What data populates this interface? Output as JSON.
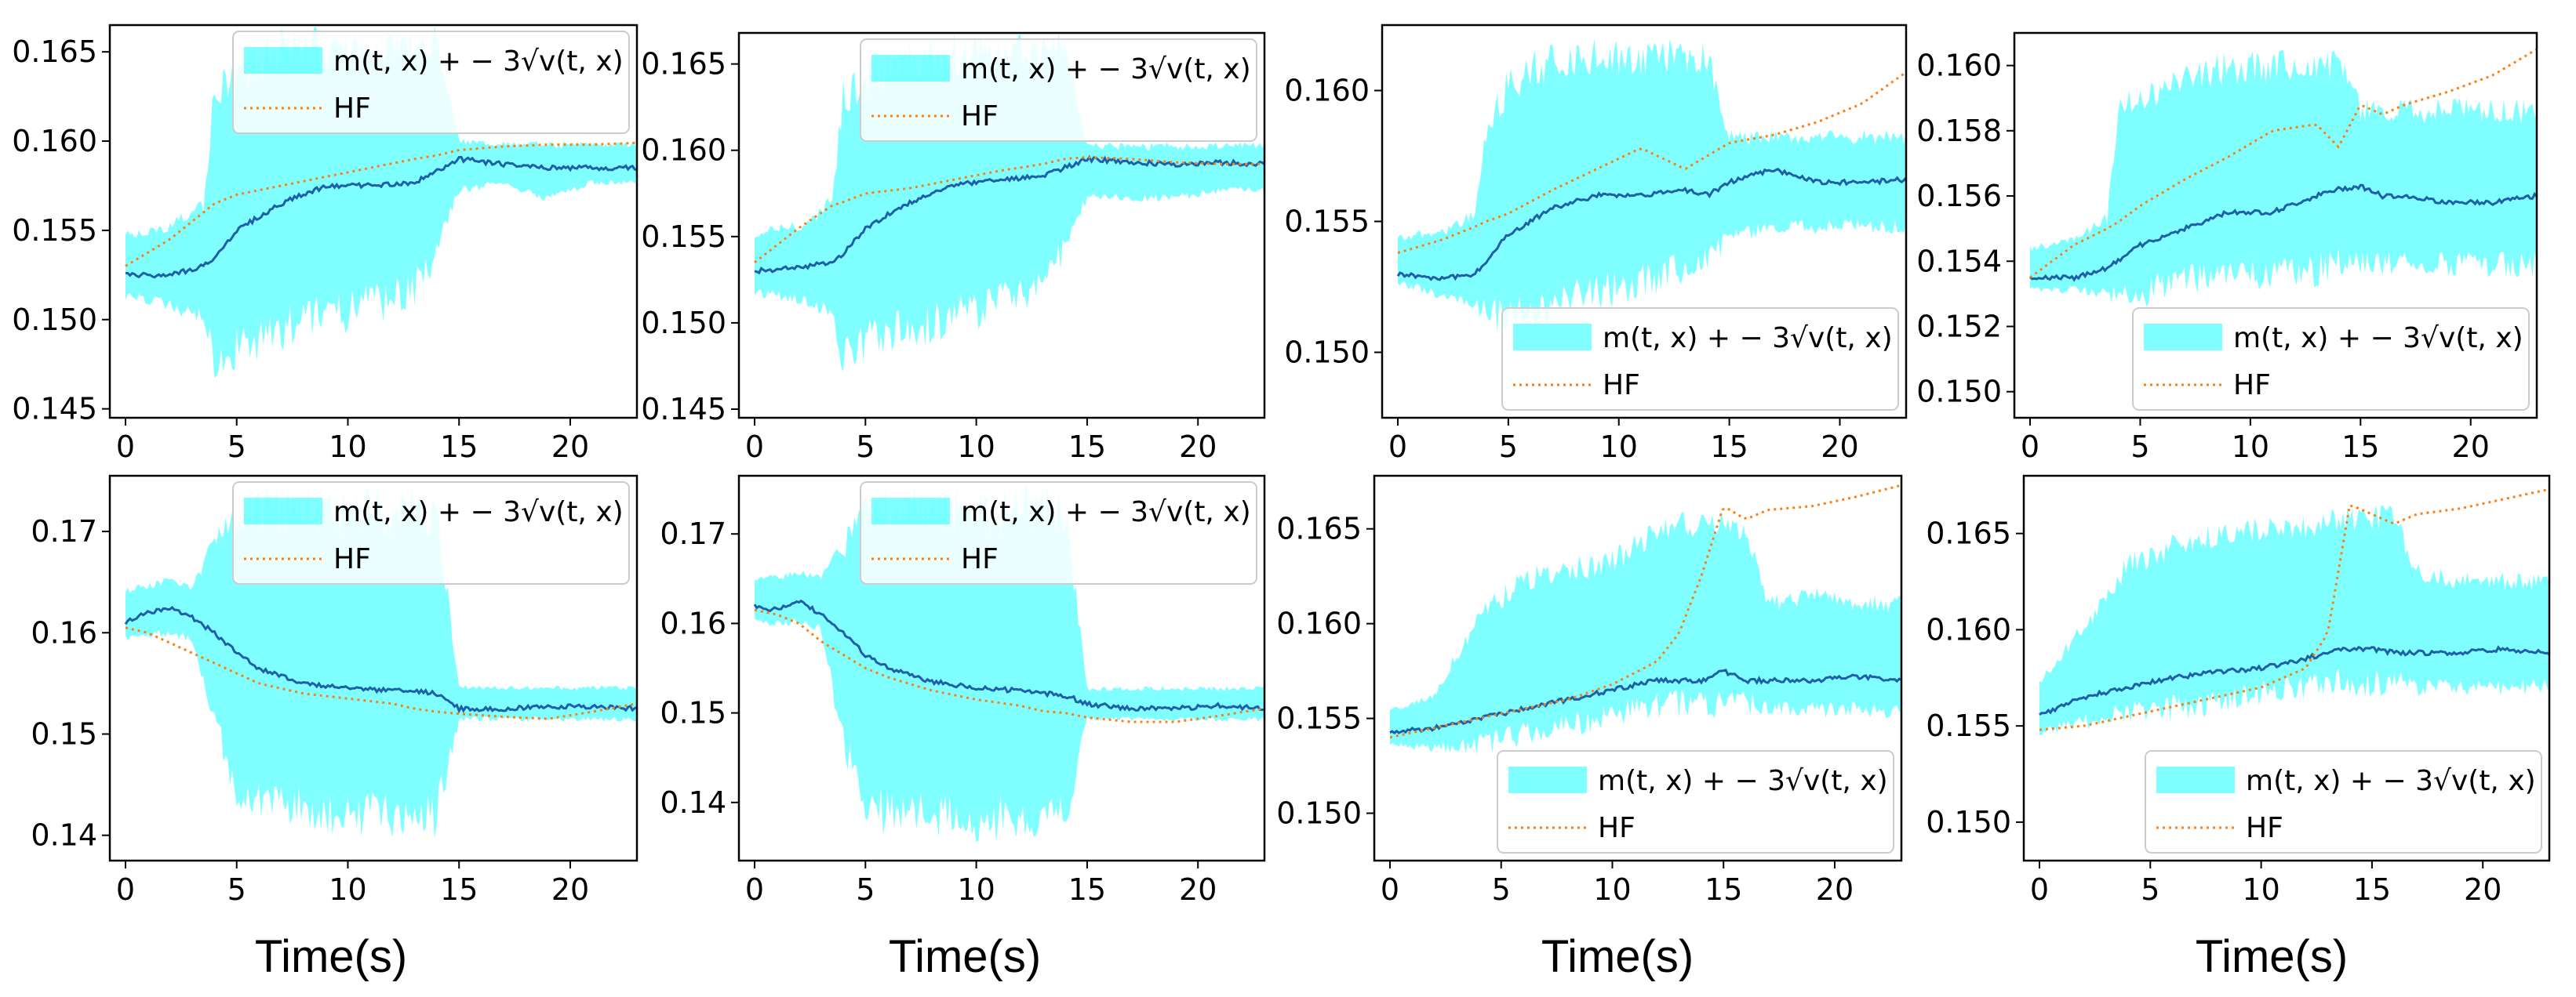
{
  "colors": {
    "band": "#00ffff",
    "mean": "#1f5fa8",
    "hf": "#ff7f0e"
  },
  "legend": {
    "band_label": "m(t, x) + − 3√v(t, x)",
    "hf_label": "HF"
  },
  "xlabels": [
    "Time(s)",
    "Time(s)",
    "Time(s)",
    "Time(s)"
  ],
  "chart_data": [
    {
      "type": "line",
      "legend_loc": "upper-right",
      "xlim": [
        0,
        23
      ],
      "ylim": [
        0.1445,
        0.1665
      ],
      "xticks": [
        0,
        5,
        10,
        15,
        20
      ],
      "yticks": [
        0.145,
        0.15,
        0.155,
        0.16,
        0.165
      ],
      "ytick_labels": [
        "0.145",
        "0.150",
        "0.155",
        "0.160",
        "0.165"
      ],
      "x": [
        0,
        2,
        3.5,
        4,
        5,
        7,
        9,
        11,
        13,
        14,
        15,
        17,
        19,
        21,
        23
      ],
      "mean": [
        0.1525,
        0.1525,
        0.153,
        0.1535,
        0.155,
        0.1565,
        0.1575,
        0.1575,
        0.1577,
        0.1583,
        0.159,
        0.1587,
        0.1585,
        0.1585,
        0.1585
      ],
      "lower": [
        0.151,
        0.1505,
        0.1495,
        0.1465,
        0.147,
        0.148,
        0.149,
        0.1495,
        0.1505,
        0.153,
        0.157,
        0.1575,
        0.1565,
        0.1575,
        0.1575
      ],
      "upper": [
        0.155,
        0.1555,
        0.157,
        0.164,
        0.165,
        0.1665,
        0.1665,
        0.1665,
        0.1665,
        0.1665,
        0.1602,
        0.16,
        0.16,
        0.16,
        0.16
      ],
      "hf": [
        0.153,
        0.1545,
        0.156,
        0.1565,
        0.157,
        0.1575,
        0.158,
        0.1585,
        0.159,
        0.1592,
        0.1595,
        0.1597,
        0.1598,
        0.1598,
        0.1599
      ],
      "legend_band": "m(t, x) + − 3√v(t, x)",
      "legend_hf": "HF"
    },
    {
      "type": "line",
      "legend_loc": "upper-right",
      "xlim": [
        0,
        23
      ],
      "ylim": [
        0.1445,
        0.1668
      ],
      "xticks": [
        0,
        5,
        10,
        15,
        20
      ],
      "yticks": [
        0.145,
        0.15,
        0.155,
        0.16,
        0.165
      ],
      "ytick_labels": [
        "0.145",
        "0.150",
        "0.155",
        "0.160",
        "0.165"
      ],
      "x": [
        0,
        2,
        3.5,
        4,
        5,
        7,
        9,
        11,
        13,
        14,
        15,
        17,
        19,
        21,
        23
      ],
      "mean": [
        0.153,
        0.1532,
        0.1535,
        0.154,
        0.1555,
        0.157,
        0.158,
        0.1583,
        0.1585,
        0.159,
        0.1595,
        0.1593,
        0.1592,
        0.1593,
        0.1592
      ],
      "lower": [
        0.1515,
        0.151,
        0.15,
        0.1465,
        0.1475,
        0.1485,
        0.149,
        0.15,
        0.151,
        0.1535,
        0.157,
        0.157,
        0.157,
        0.1575,
        0.1575
      ],
      "upper": [
        0.1555,
        0.156,
        0.1575,
        0.1645,
        0.1655,
        0.1665,
        0.1668,
        0.1668,
        0.1668,
        0.1668,
        0.1605,
        0.1605,
        0.1605,
        0.1605,
        0.1605
      ],
      "hf": [
        0.1535,
        0.1555,
        0.1568,
        0.157,
        0.1575,
        0.1578,
        0.1583,
        0.1588,
        0.1592,
        0.1595,
        0.1596,
        0.1595,
        0.1593,
        0.1592,
        0.1592
      ],
      "legend_band": "m(t, x) + − 3√v(t, x)",
      "legend_hf": "HF"
    },
    {
      "type": "line",
      "legend_loc": "lower-right",
      "xlim": [
        0,
        23
      ],
      "ylim": [
        0.1475,
        0.1625
      ],
      "xticks": [
        0,
        5,
        10,
        15,
        20
      ],
      "yticks": [
        0.15,
        0.155,
        0.16
      ],
      "ytick_labels": [
        "0.150",
        "0.155",
        "0.160"
      ],
      "x": [
        0,
        2,
        3.5,
        4,
        5,
        7,
        9,
        11,
        13,
        14,
        15,
        17,
        19,
        21,
        23
      ],
      "mean": [
        0.153,
        0.1528,
        0.153,
        0.1535,
        0.1545,
        0.1555,
        0.156,
        0.156,
        0.1562,
        0.156,
        0.1565,
        0.157,
        0.1565,
        0.1565,
        0.1566
      ],
      "lower": [
        0.1525,
        0.152,
        0.1515,
        0.151,
        0.1505,
        0.151,
        0.1515,
        0.152,
        0.1525,
        0.153,
        0.154,
        0.1545,
        0.1545,
        0.1545,
        0.1545
      ],
      "upper": [
        0.1545,
        0.1548,
        0.1555,
        0.159,
        0.161,
        0.162,
        0.162,
        0.162,
        0.162,
        0.162,
        0.1585,
        0.1585,
        0.1585,
        0.1585,
        0.1585
      ],
      "hf": [
        0.1538,
        0.1543,
        0.1548,
        0.155,
        0.1553,
        0.1562,
        0.157,
        0.1578,
        0.157,
        0.1575,
        0.158,
        0.1583,
        0.1588,
        0.1595,
        0.1607
      ],
      "legend_band": "m(t, x) + − 3√v(t, x)",
      "legend_hf": "HF"
    },
    {
      "type": "line",
      "legend_loc": "lower-right",
      "xlim": [
        0,
        23
      ],
      "ylim": [
        0.1492,
        0.161
      ],
      "xticks": [
        0,
        5,
        10,
        15,
        20
      ],
      "yticks": [
        0.15,
        0.152,
        0.154,
        0.156,
        0.158,
        0.16
      ],
      "ytick_labels": [
        "0.150",
        "0.152",
        "0.154",
        "0.156",
        "0.158",
        "0.160"
      ],
      "x": [
        0,
        2,
        3.5,
        4,
        5,
        7,
        9,
        11,
        13,
        14,
        15,
        16,
        17,
        19,
        21,
        23
      ],
      "mean": [
        0.1535,
        0.1535,
        0.1538,
        0.154,
        0.1545,
        0.155,
        0.1555,
        0.1555,
        0.156,
        0.1562,
        0.1563,
        0.156,
        0.156,
        0.1558,
        0.1558,
        0.156
      ],
      "lower": [
        0.153,
        0.153,
        0.1528,
        0.1525,
        0.1525,
        0.153,
        0.153,
        0.153,
        0.1532,
        0.1535,
        0.1535,
        0.1535,
        0.1535,
        0.1535,
        0.1535,
        0.1535
      ],
      "upper": [
        0.1545,
        0.1548,
        0.1555,
        0.159,
        0.1595,
        0.16,
        0.1605,
        0.1605,
        0.1605,
        0.1605,
        0.159,
        0.159,
        0.159,
        0.159,
        0.159,
        0.159
      ],
      "hf": [
        0.1535,
        0.1545,
        0.155,
        0.1552,
        0.1557,
        0.1565,
        0.1572,
        0.158,
        0.1582,
        0.1575,
        0.1588,
        0.1585,
        0.1588,
        0.1592,
        0.1597,
        0.1605
      ],
      "legend_band": "m(t, x) + − 3√v(t, x)",
      "legend_hf": "HF"
    },
    {
      "type": "line",
      "legend_loc": "upper-right",
      "xlim": [
        0,
        23
      ],
      "ylim": [
        0.1375,
        0.1755
      ],
      "xticks": [
        0,
        5,
        10,
        15,
        20
      ],
      "yticks": [
        0.14,
        0.15,
        0.16,
        0.17
      ],
      "ytick_labels": [
        "0.14",
        "0.15",
        "0.16",
        "0.17"
      ],
      "x": [
        0,
        1,
        2,
        3,
        4,
        5,
        6,
        8,
        10,
        12,
        13,
        14,
        15,
        17,
        19,
        21,
        23
      ],
      "mean": [
        0.161,
        0.162,
        0.1625,
        0.1615,
        0.16,
        0.158,
        0.1565,
        0.155,
        0.1545,
        0.1543,
        0.1542,
        0.154,
        0.1525,
        0.1525,
        0.1527,
        0.1527,
        0.1525
      ],
      "lower": [
        0.159,
        0.1595,
        0.1595,
        0.159,
        0.15,
        0.1425,
        0.141,
        0.14,
        0.1395,
        0.1395,
        0.1395,
        0.1395,
        0.1512,
        0.1512,
        0.1512,
        0.1512,
        0.1512
      ],
      "upper": [
        0.1645,
        0.165,
        0.1655,
        0.165,
        0.17,
        0.1735,
        0.1745,
        0.1745,
        0.1745,
        0.1745,
        0.1745,
        0.1745,
        0.155,
        0.1548,
        0.1548,
        0.1548,
        0.1548
      ],
      "hf": [
        0.1605,
        0.16,
        0.159,
        0.158,
        0.157,
        0.156,
        0.155,
        0.154,
        0.1535,
        0.153,
        0.1525,
        0.1522,
        0.152,
        0.1517,
        0.1515,
        0.1522,
        0.153
      ],
      "legend_band": "m(t, x) + − 3√v(t, x)",
      "legend_hf": "HF"
    },
    {
      "type": "line",
      "legend_loc": "upper-right",
      "xlim": [
        0,
        23
      ],
      "ylim": [
        0.1335,
        0.1765
      ],
      "xticks": [
        0,
        5,
        10,
        15,
        20
      ],
      "yticks": [
        0.14,
        0.15,
        0.16,
        0.17
      ],
      "ytick_labels": [
        "0.14",
        "0.15",
        "0.16",
        "0.17"
      ],
      "x": [
        0,
        1,
        2,
        3,
        4,
        5,
        6,
        8,
        10,
        12,
        13,
        14,
        15,
        17,
        19,
        21,
        23
      ],
      "mean": [
        0.162,
        0.1615,
        0.1625,
        0.161,
        0.159,
        0.1565,
        0.155,
        0.1535,
        0.1528,
        0.1525,
        0.1522,
        0.152,
        0.151,
        0.1505,
        0.1505,
        0.1508,
        0.1505
      ],
      "lower": [
        0.16,
        0.1595,
        0.1598,
        0.159,
        0.145,
        0.1375,
        0.136,
        0.136,
        0.1355,
        0.1355,
        0.1355,
        0.1355,
        0.149,
        0.149,
        0.149,
        0.149,
        0.149
      ],
      "upper": [
        0.1655,
        0.1655,
        0.166,
        0.1655,
        0.171,
        0.1745,
        0.1755,
        0.1755,
        0.1755,
        0.1755,
        0.1755,
        0.1755,
        0.153,
        0.153,
        0.153,
        0.153,
        0.153
      ],
      "hf": [
        0.1615,
        0.161,
        0.16,
        0.158,
        0.1565,
        0.155,
        0.154,
        0.1525,
        0.1515,
        0.1508,
        0.1502,
        0.15,
        0.1495,
        0.149,
        0.149,
        0.1497,
        0.1505
      ],
      "legend_band": "m(t, x) + − 3√v(t, x)",
      "legend_hf": "HF"
    },
    {
      "type": "line",
      "legend_loc": "lower-right",
      "xlim": [
        0,
        23
      ],
      "ylim": [
        0.1475,
        0.1678
      ],
      "xticks": [
        0,
        5,
        10,
        15,
        20
      ],
      "yticks": [
        0.15,
        0.155,
        0.16,
        0.165
      ],
      "ytick_labels": [
        "0.150",
        "0.155",
        "0.160",
        "0.165"
      ],
      "x": [
        0,
        2,
        4,
        6,
        8,
        10,
        12,
        13,
        14,
        15,
        16,
        17,
        19,
        21,
        23
      ],
      "mean": [
        0.1543,
        0.1545,
        0.155,
        0.1555,
        0.156,
        0.1565,
        0.157,
        0.157,
        0.157,
        0.1575,
        0.157,
        0.157,
        0.157,
        0.1572,
        0.157
      ],
      "lower": [
        0.1535,
        0.1532,
        0.153,
        0.1535,
        0.154,
        0.1545,
        0.155,
        0.155,
        0.155,
        0.155,
        0.155,
        0.155,
        0.155,
        0.155,
        0.155
      ],
      "upper": [
        0.1555,
        0.1565,
        0.161,
        0.163,
        0.1635,
        0.164,
        0.1655,
        0.166,
        0.166,
        0.166,
        0.166,
        0.1615,
        0.162,
        0.1615,
        0.1615
      ],
      "hf": [
        0.154,
        0.1545,
        0.155,
        0.1555,
        0.156,
        0.1568,
        0.158,
        0.1595,
        0.1625,
        0.1662,
        0.1655,
        0.166,
        0.1662,
        0.1667,
        0.1673
      ],
      "legend_band": "m(t, x) + − 3√v(t, x)",
      "legend_hf": "HF"
    },
    {
      "type": "line",
      "legend_loc": "lower-right",
      "xlim": [
        0,
        23
      ],
      "ylim": [
        0.148,
        0.168
      ],
      "xticks": [
        0,
        5,
        10,
        15,
        20
      ],
      "yticks": [
        0.15,
        0.155,
        0.16,
        0.165
      ],
      "ytick_labels": [
        "0.150",
        "0.155",
        "0.160",
        "0.165"
      ],
      "x": [
        0,
        2,
        4,
        6,
        8,
        10,
        12,
        13,
        14,
        15,
        16,
        17,
        19,
        21,
        23
      ],
      "mean": [
        0.1555,
        0.1565,
        0.157,
        0.1575,
        0.1578,
        0.158,
        0.1585,
        0.1588,
        0.159,
        0.159,
        0.1588,
        0.1588,
        0.1588,
        0.159,
        0.1588
      ],
      "lower": [
        0.1545,
        0.1548,
        0.155,
        0.1552,
        0.1555,
        0.156,
        0.1562,
        0.1565,
        0.1565,
        0.1565,
        0.1565,
        0.1565,
        0.1565,
        0.1565,
        0.1565
      ],
      "upper": [
        0.1575,
        0.1605,
        0.164,
        0.165,
        0.1655,
        0.166,
        0.166,
        0.1665,
        0.1665,
        0.1665,
        0.1665,
        0.1635,
        0.163,
        0.163,
        0.163
      ],
      "hf": [
        0.1548,
        0.155,
        0.1555,
        0.156,
        0.1565,
        0.157,
        0.158,
        0.1598,
        0.1665,
        0.166,
        0.1655,
        0.166,
        0.1663,
        0.1668,
        0.1673
      ],
      "legend_band": "m(t, x) + − 3√v(t, x)",
      "legend_hf": "HF"
    }
  ]
}
